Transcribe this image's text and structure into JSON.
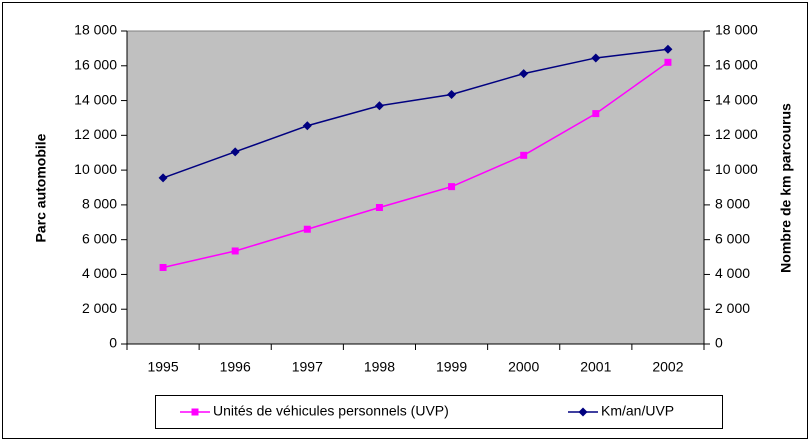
{
  "chart_data": {
    "type": "line",
    "categories": [
      "1995",
      "1996",
      "1997",
      "1998",
      "1999",
      "2000",
      "2001",
      "2002"
    ],
    "ylabel": "Parc automobile",
    "y2label": "Nombre de km parcourus",
    "ylim": [
      0,
      18000
    ],
    "yticks": [
      0,
      {
        "value": 2000,
        "label": "2 000"
      },
      {
        "value": 4000,
        "label": "4 000"
      },
      {
        "value": 6000,
        "label": "6 000"
      },
      {
        "value": 8000,
        "label": "8 000"
      },
      {
        "value": 10000,
        "label": "10 000"
      },
      {
        "value": 12000,
        "label": "12 000"
      },
      {
        "value": 14000,
        "label": "14 000"
      },
      {
        "value": 16000,
        "label": "16 000"
      },
      {
        "value": 18000,
        "label": "18 000"
      }
    ],
    "y2lim": [
      0,
      18000
    ],
    "y2ticks": [
      0,
      {
        "value": 2000,
        "label": "2 000"
      },
      {
        "value": 4000,
        "label": "4 000"
      },
      {
        "value": 6000,
        "label": "6 000"
      },
      {
        "value": 8000,
        "label": "8 000"
      },
      {
        "value": 10000,
        "label": "10 000"
      },
      {
        "value": 12000,
        "label": "12 000"
      },
      {
        "value": 14000,
        "label": "14 000"
      },
      {
        "value": 16000,
        "label": "16 000"
      },
      {
        "value": 18000,
        "label": "18 000"
      }
    ],
    "legend": "bottom",
    "plot_background": "#c0c0c0",
    "series": [
      {
        "name": "Unités de véhicules personnels (UVP)",
        "color": "#ff00ff",
        "marker": "square",
        "values": [
          4400,
          5350,
          6600,
          7850,
          9050,
          10850,
          13250,
          16200
        ]
      },
      {
        "name": "Km/an/UVP",
        "color": "#000080",
        "marker": "diamond",
        "axis": "y2",
        "values": [
          9550,
          11050,
          12550,
          13700,
          14350,
          15550,
          16450,
          16950
        ]
      }
    ]
  }
}
